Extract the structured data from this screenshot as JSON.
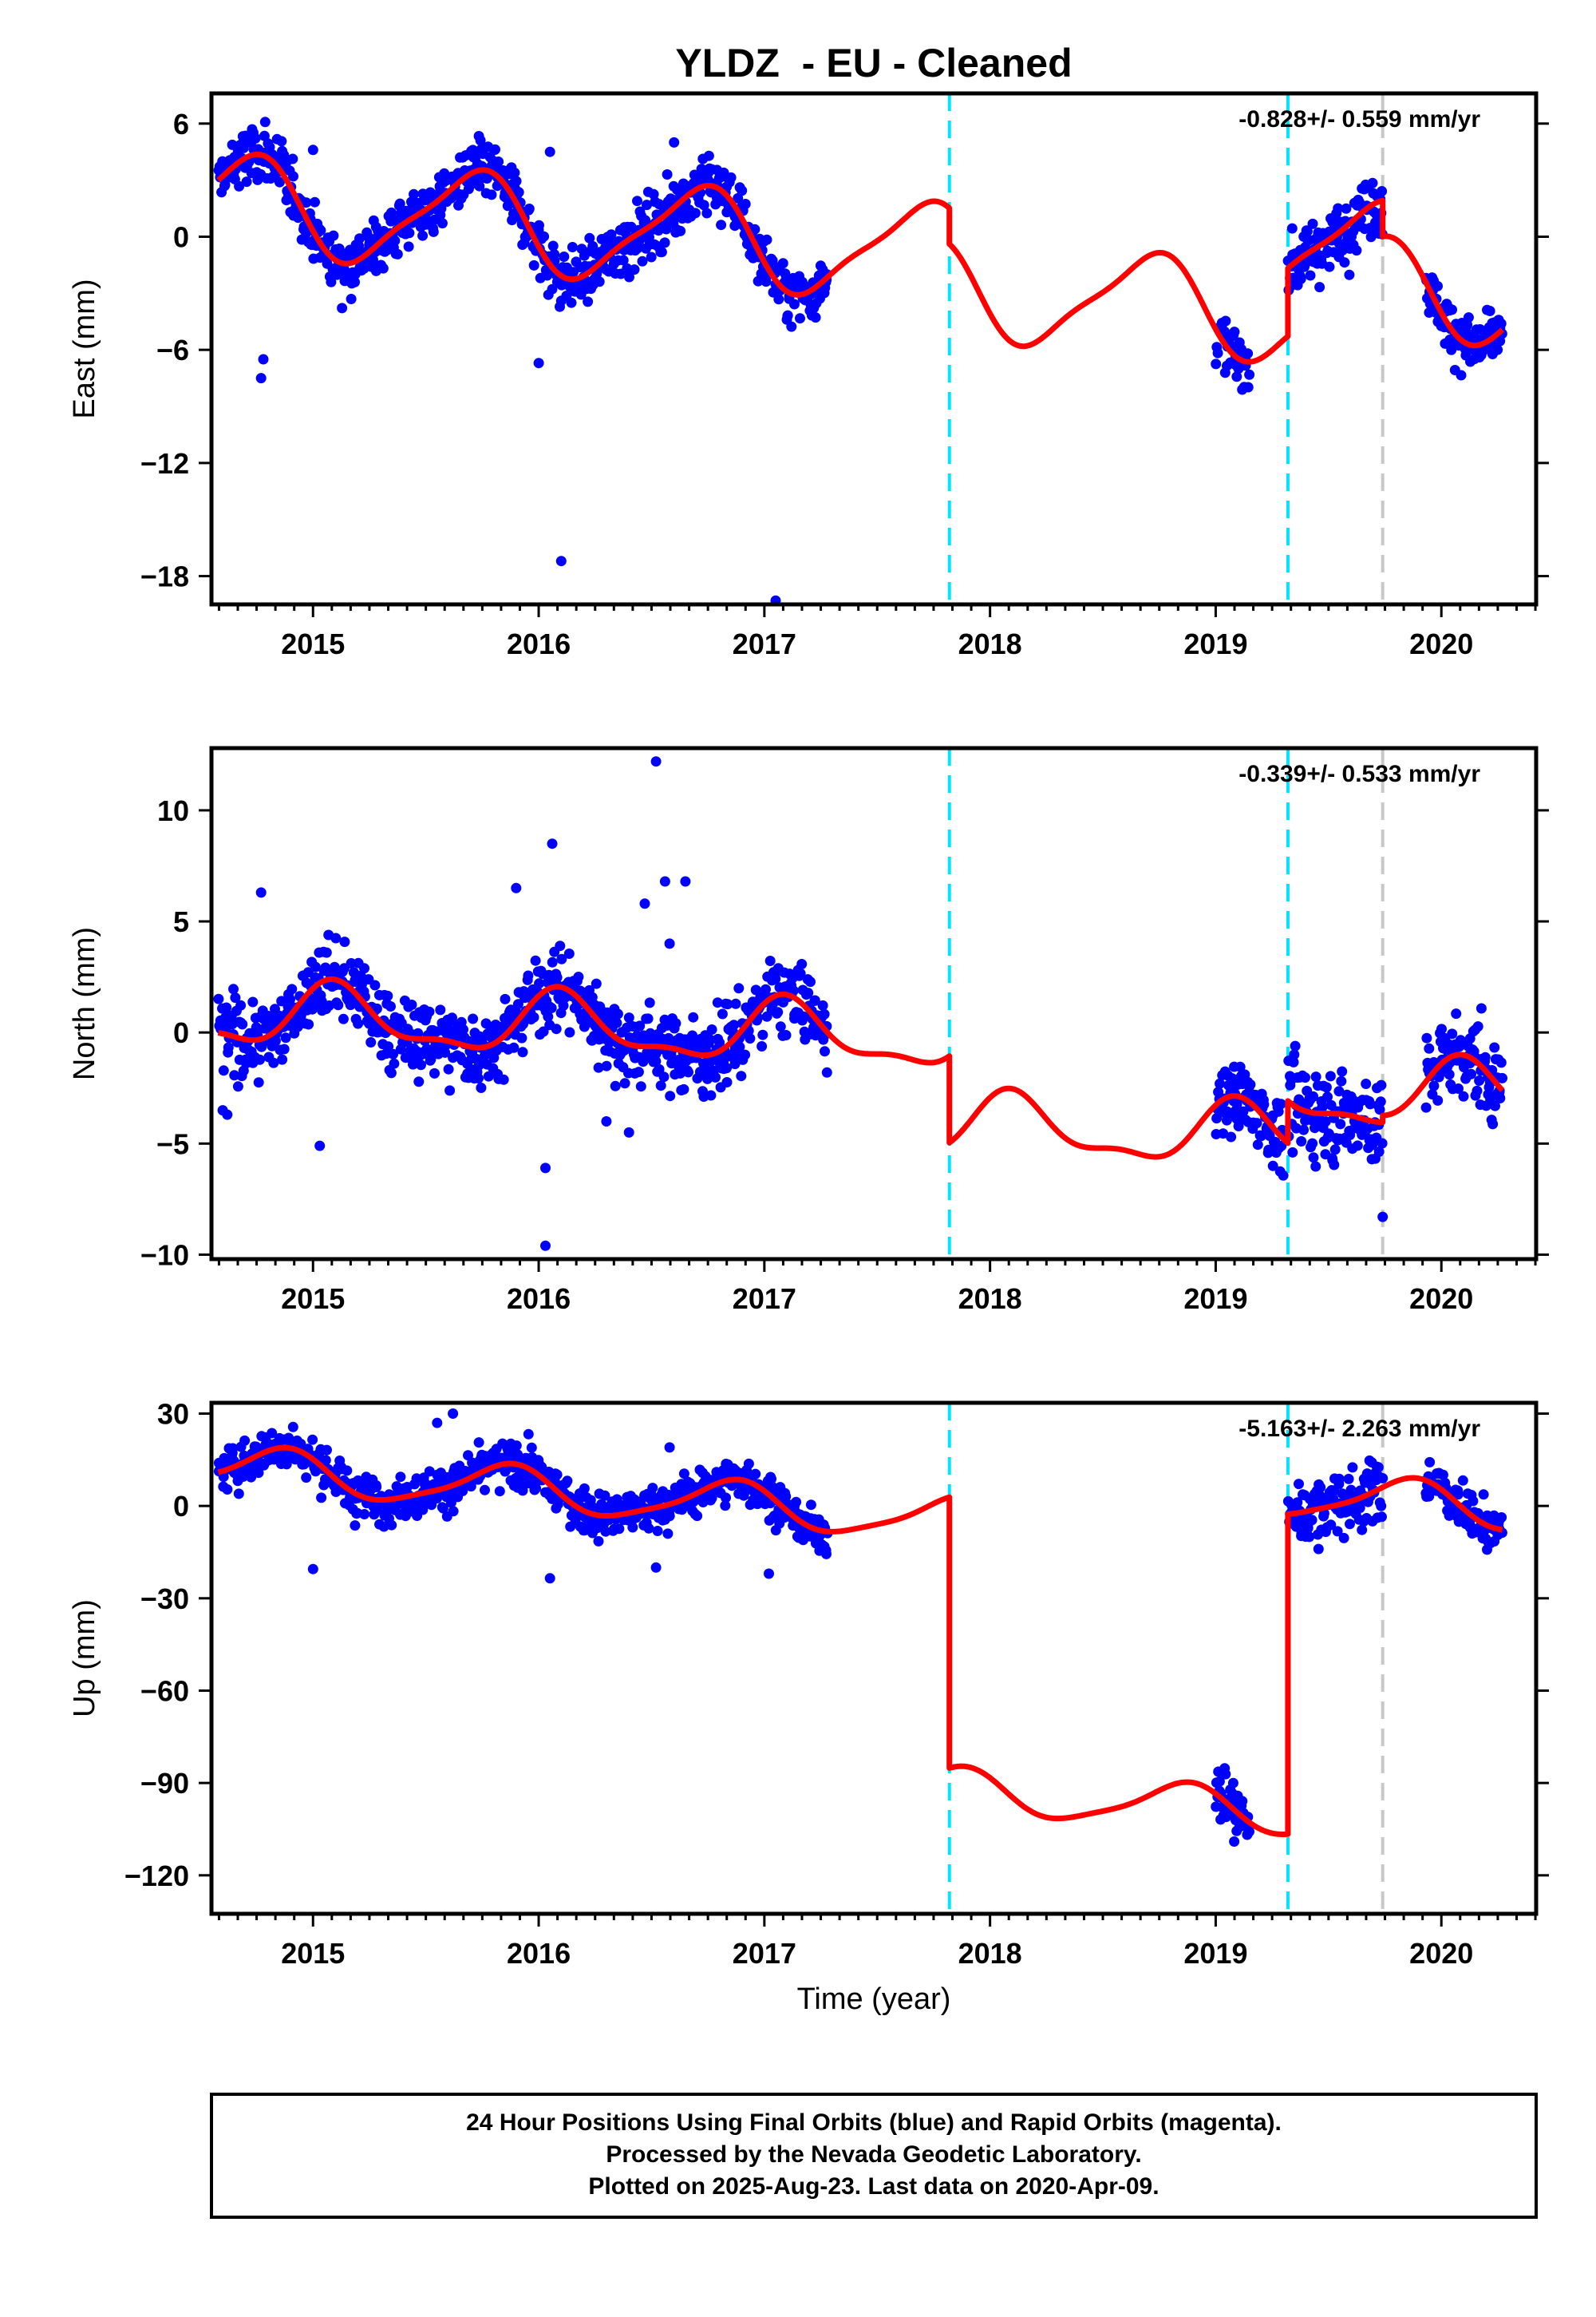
{
  "chart_data": {
    "title": "YLDZ  - EU - Cleaned",
    "xlabel": "Time (year)",
    "xlim": [
      2014.55,
      2020.42
    ],
    "x_ticks": [
      2015,
      2016,
      2017,
      2018,
      2019,
      2020
    ],
    "x_tick_labels": [
      "2015",
      "2016",
      "2017",
      "2018",
      "2019",
      "2020"
    ],
    "steps": [
      {
        "x": 2017.82,
        "color": "#00e5ff",
        "style": "dashed"
      },
      {
        "x": 2019.32,
        "color": "#00e5ff",
        "style": "dashed"
      },
      {
        "x": 2019.74,
        "color": "#c8c8c8",
        "style": "dashed"
      }
    ],
    "panels": [
      {
        "type": "scatter",
        "ylabel": "East (mm)",
        "ylim": [
          -19.5,
          7.6
        ],
        "y_ticks": [
          6,
          0,
          -6,
          -12,
          -18
        ],
        "y_tick_labels": [
          "6",
          "0",
          "−6",
          "−12",
          "−18"
        ],
        "rate_text": "-0.828+/- 0.559 mm/yr",
        "segments": [
          {
            "x_range": [
              2014.58,
              2017.82
            ],
            "model": {
              "offset": 0.6,
              "trend": -0.828,
              "t0": 2016.0,
              "annual_amp": 2.5,
              "annual_phase": 2015.45,
              "semi_amp": 0.6,
              "semi_phase": 2015.2
            },
            "data": {
              "x_range": [
                2014.58,
                2017.28
              ],
              "noise": 1.1
            }
          },
          {
            "x_range": [
              2017.82,
              2019.32
            ],
            "model": {
              "offset": -1.3,
              "trend": -0.828,
              "t0": 2016.0,
              "annual_amp": 2.5,
              "annual_phase": 2015.45,
              "semi_amp": 0.6,
              "semi_phase": 2015.2
            },
            "data": {
              "x_range": [
                2019.0,
                2019.15
              ],
              "noise": 1.0
            }
          },
          {
            "x_range": [
              2019.32,
              2019.74
            ],
            "model": {
              "offset": 2.3,
              "trend": -0.828,
              "t0": 2016.0,
              "annual_amp": 2.5,
              "annual_phase": 2015.45,
              "semi_amp": 0.6,
              "semi_phase": 2015.2
            },
            "data": {
              "x_range": [
                2019.32,
                2019.74
              ],
              "noise": 1.2
            }
          },
          {
            "x_range": [
              2019.74,
              2020.27
            ],
            "model": {
              "offset": 0.4,
              "trend": -0.828,
              "t0": 2016.0,
              "annual_amp": 2.5,
              "annual_phase": 2015.45,
              "semi_amp": 0.6,
              "semi_phase": 2015.2
            },
            "data": {
              "x_range": [
                2019.93,
                2020.27
              ],
              "noise": 1.0
            }
          }
        ],
        "outliers": [
          [
            2014.78,
            -6.5
          ],
          [
            2014.77,
            -7.5
          ],
          [
            2016.0,
            -6.7
          ],
          [
            2016.1,
            -17.2
          ],
          [
            2017.05,
            -19.3
          ],
          [
            2016.05,
            4.5
          ],
          [
            2016.6,
            5.0
          ],
          [
            2015.0,
            4.6
          ]
        ]
      },
      {
        "type": "scatter",
        "ylabel": "North (mm)",
        "ylim": [
          -10.2,
          12.8
        ],
        "y_ticks": [
          10,
          5,
          0,
          -5,
          -10
        ],
        "y_tick_labels": [
          "10",
          "5",
          "0",
          "−5",
          "−10"
        ],
        "rate_text": "-0.339+/- 0.533 mm/yr",
        "segments": [
          {
            "x_range": [
              2014.58,
              2017.82
            ],
            "model": {
              "offset": 0.3,
              "trend": -0.339,
              "t0": 2016.0,
              "annual_amp": 1.3,
              "annual_phase": 2014.85,
              "semi_amp": 0.5,
              "semi_phase": 2014.95
            },
            "data": {
              "x_range": [
                2014.58,
                2017.28
              ],
              "noise": 1.2
            }
          },
          {
            "x_range": [
              2017.82,
              2019.32
            ],
            "model": {
              "offset": -3.6,
              "trend": -0.339,
              "t0": 2016.0,
              "annual_amp": 1.3,
              "annual_phase": 2014.85,
              "semi_amp": 0.5,
              "semi_phase": 2014.95
            },
            "data": {
              "x_range": [
                2019.0,
                2019.3
              ],
              "noise": 1.1
            }
          },
          {
            "x_range": [
              2019.32,
              2019.74
            ],
            "model": {
              "offset": -1.7,
              "trend": -0.339,
              "t0": 2016.0,
              "annual_amp": 1.3,
              "annual_phase": 2014.85,
              "semi_amp": 0.5,
              "semi_phase": 2014.95
            },
            "data": {
              "x_range": [
                2019.32,
                2019.74
              ],
              "noise": 1.5
            }
          },
          {
            "x_range": [
              2019.74,
              2020.27
            ],
            "model": {
              "offset": -1.4,
              "trend": -0.339,
              "t0": 2016.0,
              "annual_amp": 1.3,
              "annual_phase": 2014.85,
              "semi_amp": 0.5,
              "semi_phase": 2014.95
            },
            "data": {
              "x_range": [
                2019.93,
                2020.27
              ],
              "noise": 1.3
            }
          }
        ],
        "outliers": [
          [
            2014.62,
            -3.7
          ],
          [
            2014.6,
            -3.5
          ],
          [
            2015.03,
            -5.1
          ],
          [
            2016.03,
            -6.1
          ],
          [
            2016.03,
            -9.6
          ],
          [
            2016.06,
            8.5
          ],
          [
            2016.52,
            12.2
          ],
          [
            2016.47,
            5.8
          ],
          [
            2016.56,
            6.8
          ],
          [
            2016.65,
            6.8
          ],
          [
            2015.9,
            6.5
          ],
          [
            2016.4,
            -4.5
          ],
          [
            2016.3,
            -4.0
          ],
          [
            2014.77,
            6.3
          ],
          [
            2016.58,
            4.0
          ],
          [
            2019.74,
            -8.3
          ]
        ]
      },
      {
        "type": "scatter",
        "ylabel": "Up (mm)",
        "ylim": [
          -132.5,
          33.5
        ],
        "y_ticks": [
          30,
          0,
          -30,
          -60,
          -90,
          -120
        ],
        "y_tick_labels": [
          "30",
          "0",
          "−30",
          "−60",
          "−90",
          "−120"
        ],
        "rate_text": "-5.163+/- 2.263 mm/yr",
        "segments": [
          {
            "x_range": [
              2014.58,
              2017.82
            ],
            "model": {
              "offset": 5.0,
              "trend": -5.163,
              "t0": 2016.0,
              "annual_amp": 7.0,
              "annual_phase": 2015.6,
              "semi_amp": 1.5,
              "semi_phase": 2015.3
            },
            "data": {
              "x_range": [
                2014.58,
                2017.28
              ],
              "noise": 5.0
            }
          },
          {
            "x_range": [
              2017.82,
              2019.32
            ],
            "model": {
              "offset": -83.0,
              "trend": -5.163,
              "t0": 2016.0,
              "annual_amp": 7.0,
              "annual_phase": 2015.6,
              "semi_amp": 1.5,
              "semi_phase": 2015.3
            },
            "data": {
              "x_range": [
                2019.0,
                2019.15
              ],
              "noise": 6.0
            }
          },
          {
            "x_range": [
              2019.32,
              2019.74
            ],
            "model": {
              "offset": 21.0,
              "trend": -5.163,
              "t0": 2016.0,
              "annual_amp": 7.0,
              "annual_phase": 2015.6,
              "semi_amp": 1.5,
              "semi_phase": 2015.3
            },
            "data": {
              "x_range": [
                2019.32,
                2019.74
              ],
              "noise": 7.0
            }
          },
          {
            "x_range": [
              2019.74,
              2020.27
            ],
            "model": {
              "offset": 21.0,
              "trend": -5.163,
              "t0": 2016.0,
              "annual_amp": 7.0,
              "annual_phase": 2015.6,
              "semi_amp": 1.5,
              "semi_phase": 2015.3
            },
            "data": {
              "x_range": [
                2019.93,
                2020.27
              ],
              "noise": 5.0
            }
          }
        ],
        "outliers": [
          [
            2015.0,
            -20.5
          ],
          [
            2016.05,
            -23.5
          ],
          [
            2016.52,
            -20.0
          ],
          [
            2017.02,
            -22.0
          ],
          [
            2016.58,
            19.0
          ],
          [
            2015.55,
            27.0
          ],
          [
            2015.62,
            30.0
          ]
        ]
      }
    ],
    "caption_lines": [
      "24 Hour Positions Using Final Orbits (blue) and Rapid Orbits (magenta).",
      "Processed by the Nevada Geodetic Laboratory.",
      "Plotted on 2025-Aug-23. Last data on 2020-Apr-09."
    ],
    "colors": {
      "data": "#0000ff",
      "model": "#ff0000",
      "frame": "#000000",
      "step_main": "#00e5ff",
      "step_other": "#c8c8c8"
    }
  }
}
